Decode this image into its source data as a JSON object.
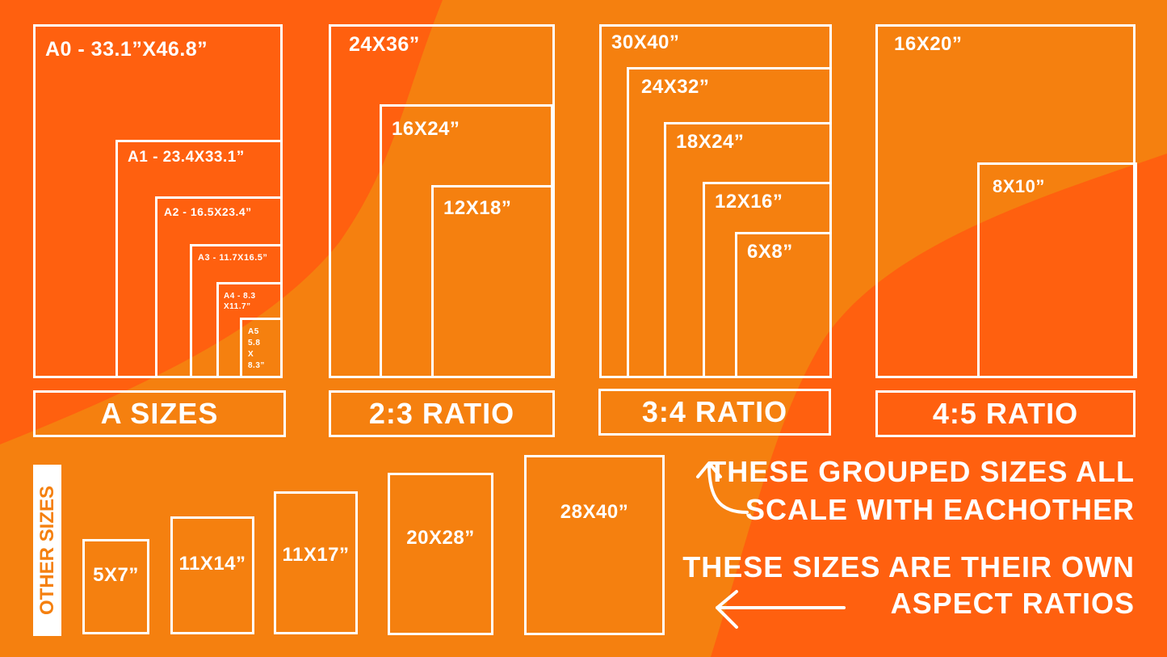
{
  "colors": {
    "dark_orange": "#FF600F",
    "light_orange": "#F5800F",
    "line": "#FFFFFF"
  },
  "a_sizes": {
    "label": "A SIZES",
    "items": [
      "A0 - 33.1”X46.8”",
      "A1 - 23.4X33.1”",
      "A2 - 16.5X23.4”",
      "A3 - 11.7X16.5”",
      "A4 - 8.3 X11.7”",
      "A5 5.8 X 8.3”"
    ]
  },
  "ratio_2_3": {
    "label": "2:3 RATIO",
    "items": [
      "24X36”",
      "16X24”",
      "12X18”"
    ]
  },
  "ratio_3_4": {
    "label": "3:4 RATIO",
    "items": [
      "30X40”",
      "24X32”",
      "18X24”",
      "12X16”",
      "6X8”"
    ]
  },
  "ratio_4_5": {
    "label": "4:5 RATIO",
    "items": [
      "16X20”",
      "8X10”"
    ]
  },
  "other_sizes": {
    "label": "OTHER SIZES",
    "items": [
      "5X7”",
      "11X14”",
      "11X17”",
      "20X28”",
      "28X40”"
    ]
  },
  "notes": {
    "grouped": [
      "THESE GROUPED SIZES ALL",
      "SCALE WITH EACHOTHER"
    ],
    "own": [
      "THESE SIZES ARE THEIR OWN",
      "ASPECT RATIOS"
    ]
  },
  "icons": {
    "grouped_arrow": "curved-up-arrow-icon",
    "own_arrow": "left-arrow-icon"
  }
}
